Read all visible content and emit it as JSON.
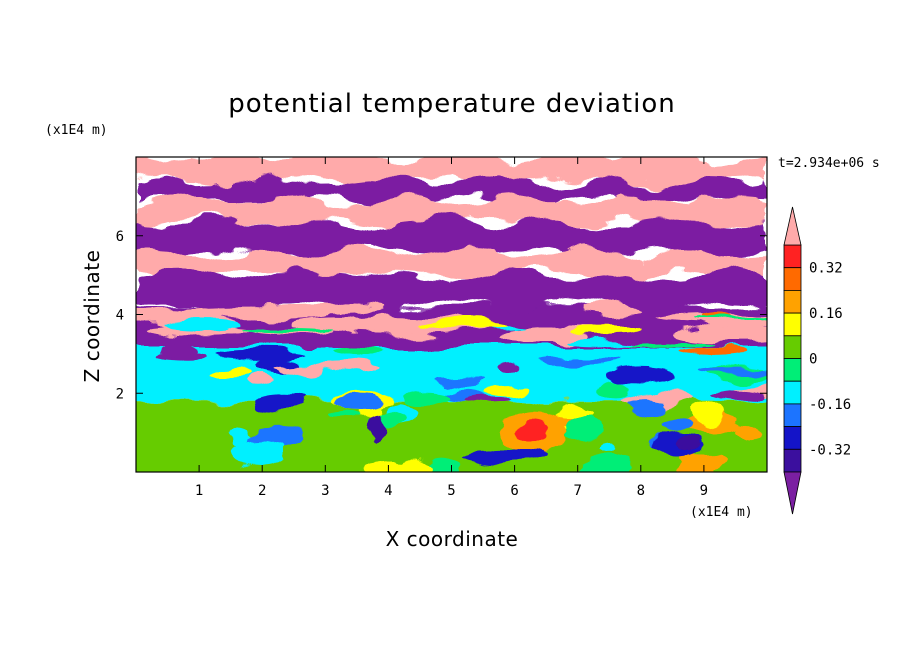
{
  "chart_data": {
    "type": "heatmap",
    "title": "potential temperature deviation",
    "xlabel": "X coordinate",
    "ylabel": "Z coordinate",
    "x_unit": "(x1E4 m)",
    "y_unit": "(x1E4 m)",
    "time_label": "t=2.934e+06 s",
    "xlim": [
      0,
      10
    ],
    "ylim": [
      0,
      8
    ],
    "x_ticks": [
      1,
      2,
      3,
      4,
      5,
      6,
      7,
      8,
      9
    ],
    "y_ticks": [
      2,
      4,
      6
    ],
    "colorbar": {
      "levels": [
        -0.4,
        -0.32,
        -0.24,
        -0.16,
        -0.08,
        0,
        0.08,
        0.16,
        0.24,
        0.32,
        0.4
      ],
      "tick_labels": [
        "0.32",
        "0.16",
        "0",
        "-0.16",
        "-0.32"
      ],
      "colors": [
        "#7b1fa2",
        "#3b0f9e",
        "#1414c8",
        "#1c74ff",
        "#00f0ff",
        "#00ee77",
        "#66cc00",
        "#ffff00",
        "#ffa200",
        "#ff6a00",
        "#ff2222",
        "#ffaaaa"
      ],
      "extend": "both"
    },
    "layers": [
      {
        "z": [
          7.4,
          8.0
        ],
        "band": "high"
      },
      {
        "z": [
          6.9,
          7.4
        ],
        "band": "low"
      },
      {
        "z": [
          6.3,
          6.9
        ],
        "band": "high"
      },
      {
        "z": [
          5.6,
          6.3
        ],
        "band": "low"
      },
      {
        "z": [
          5.0,
          5.6
        ],
        "band": "high"
      },
      {
        "z": [
          4.2,
          5.0
        ],
        "band": "low"
      },
      {
        "z": [
          3.2,
          4.2
        ],
        "band": "mixed"
      },
      {
        "z": [
          1.8,
          3.2
        ],
        "band": "turbulent"
      },
      {
        "z": [
          0.0,
          1.8
        ],
        "band": "near-neutral"
      }
    ]
  }
}
